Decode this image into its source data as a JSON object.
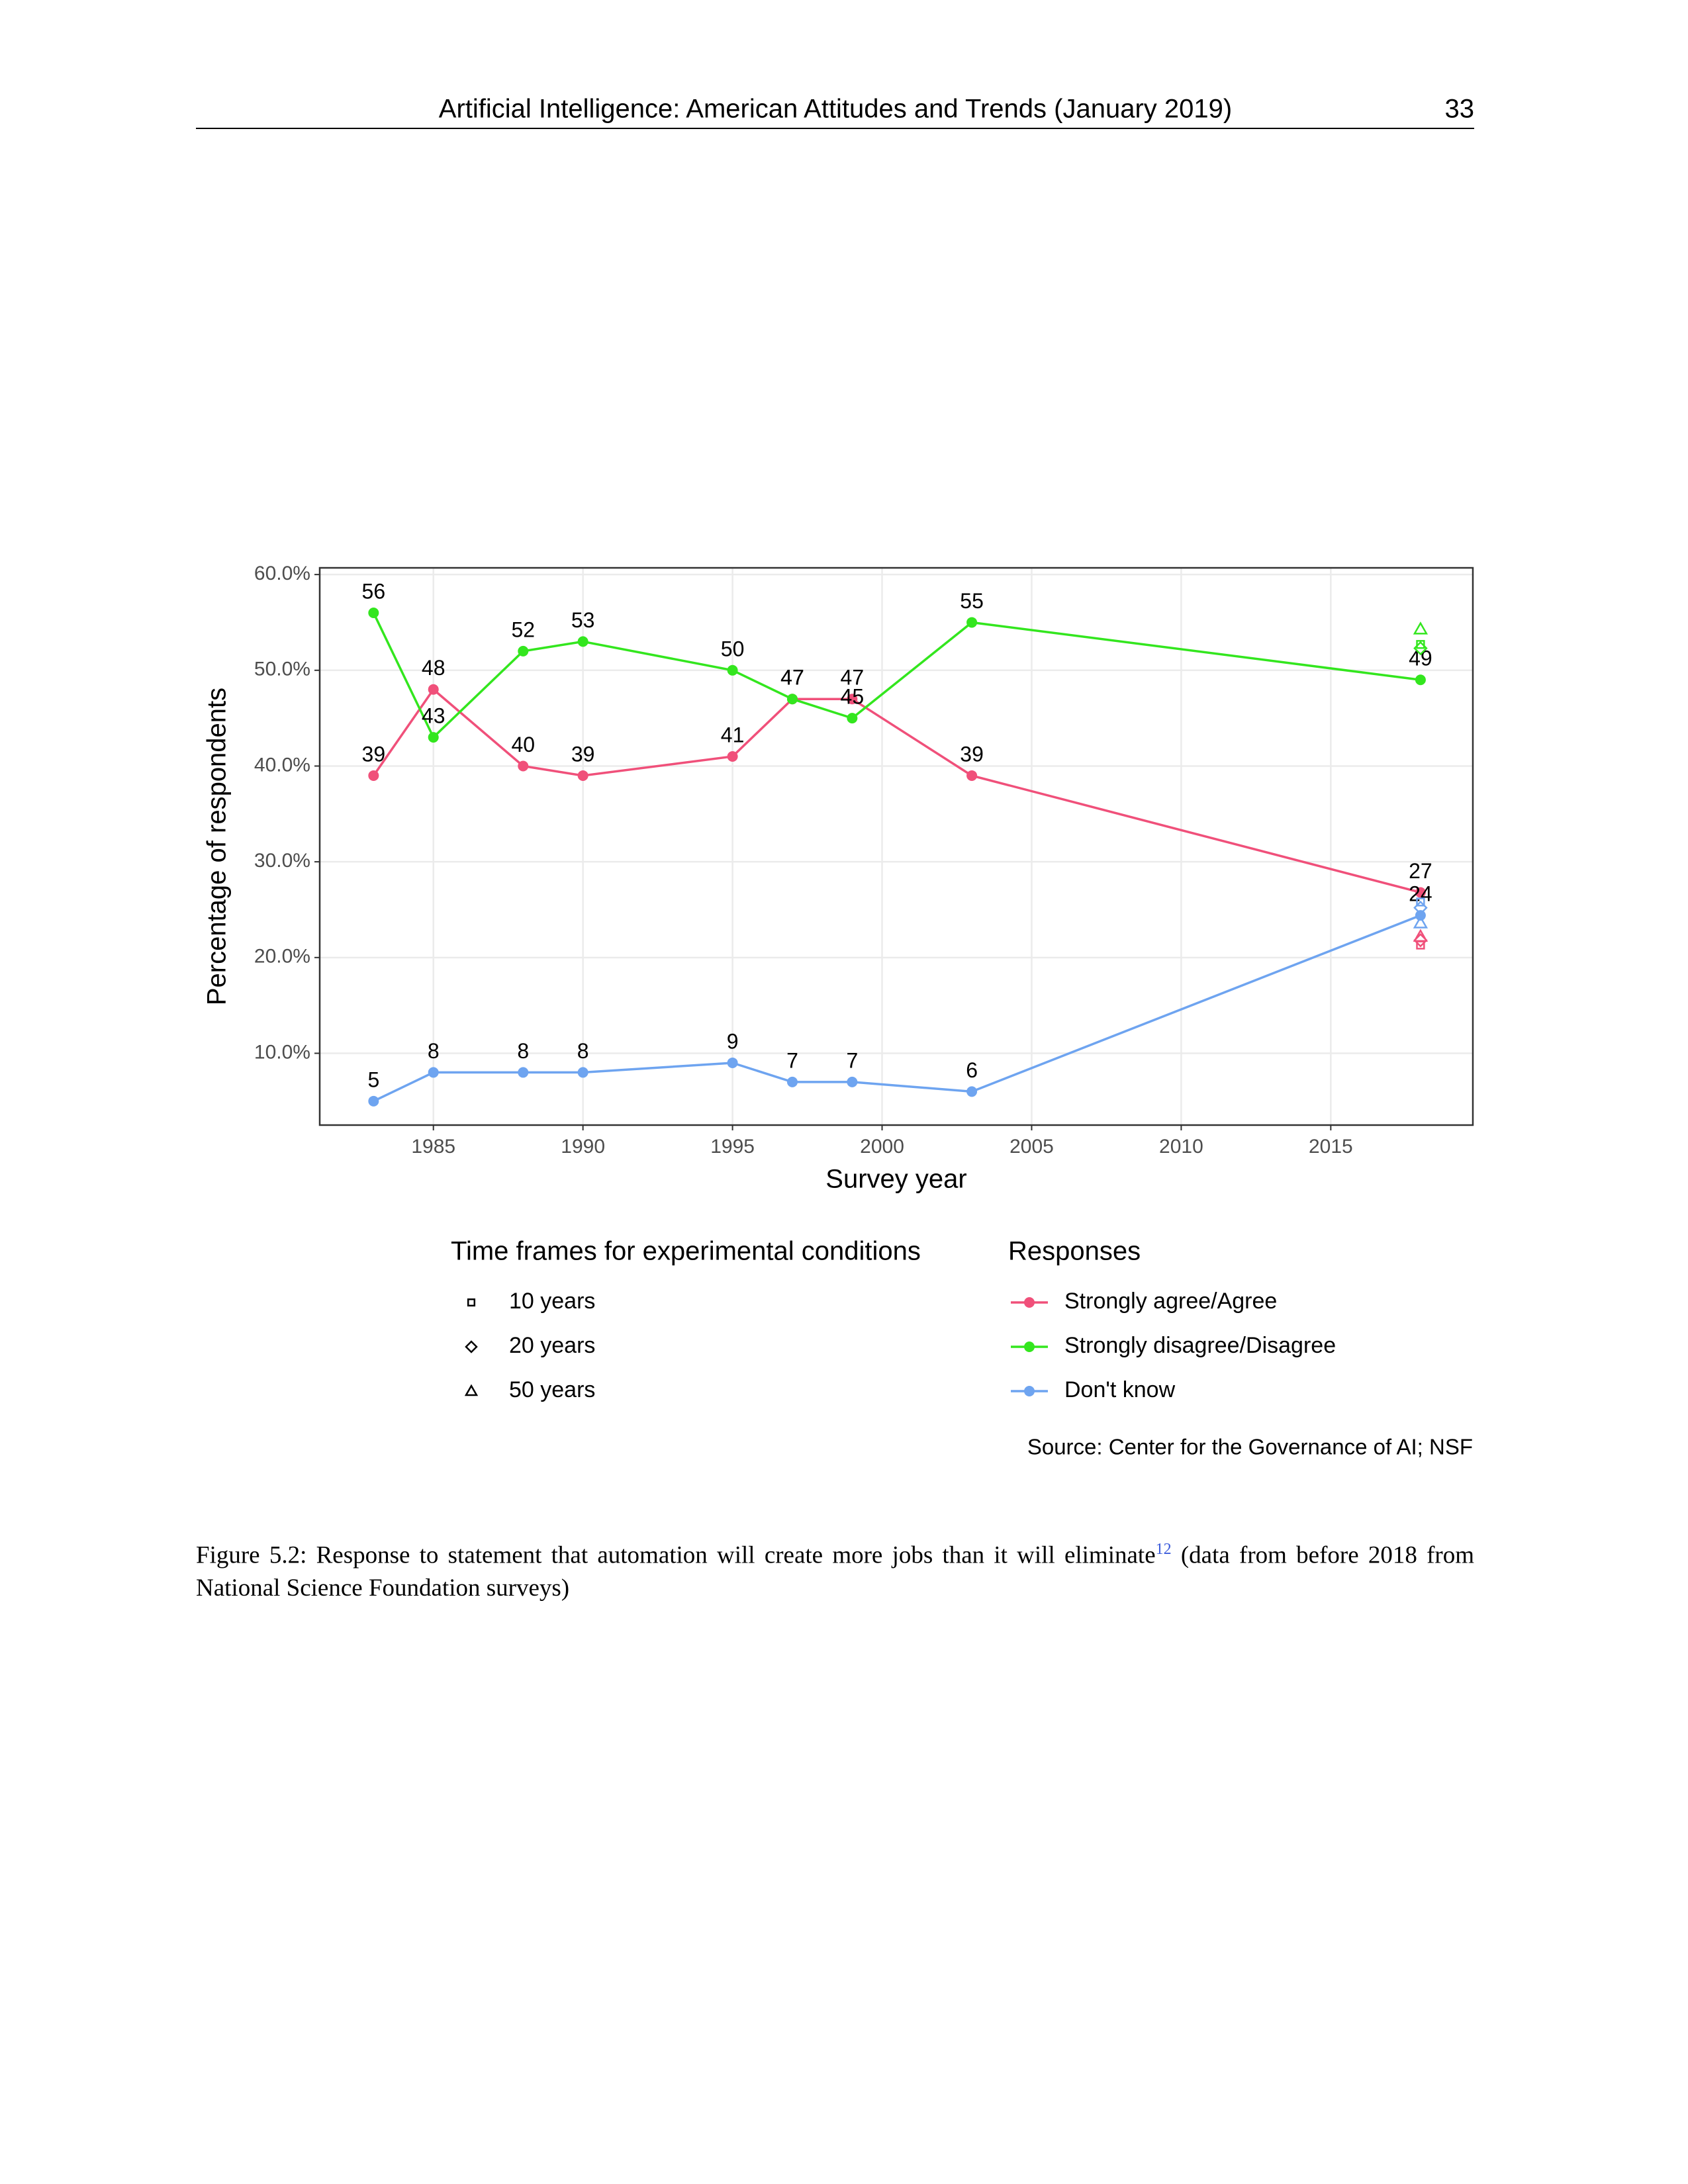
{
  "header": {
    "title": "Artificial Intelligence: American Attitudes and Trends (January 2019)",
    "page_number": "33"
  },
  "chart_data": {
    "type": "line",
    "x_label": "Survey year",
    "y_label": "Percentage of respondents",
    "x": [
      1983,
      1985,
      1988,
      1990,
      1995,
      1997,
      1999,
      2003,
      2018
    ],
    "xlim": [
      1981.2,
      2019.75
    ],
    "xticks": [
      1985,
      1990,
      1995,
      2000,
      2005,
      2010,
      2015
    ],
    "ylim": [
      2.5,
      60.7
    ],
    "yticks": [
      {
        "value": 10,
        "label": "10.0%"
      },
      {
        "value": 20,
        "label": "20.0%"
      },
      {
        "value": 30,
        "label": "30.0%"
      },
      {
        "value": 40,
        "label": "40.0%"
      },
      {
        "value": 50,
        "label": "50.0%"
      },
      {
        "value": 60,
        "label": "60.0%"
      }
    ],
    "grid": true,
    "legend_title": "Responses",
    "series": [
      {
        "name": "Strongly agree/Agree",
        "color": "#f0507a",
        "values": [
          39,
          48,
          40,
          39,
          41,
          47,
          47,
          39,
          26.8
        ],
        "value_labels": [
          "39",
          "48",
          "40",
          "39",
          "41",
          "47",
          "47",
          "39",
          "27"
        ]
      },
      {
        "name": "Strongly disagree/Disagree",
        "color": "#33e61e",
        "values": [
          56,
          43,
          52,
          53,
          50,
          47,
          45,
          55,
          49
        ],
        "value_labels": [
          "56",
          "43",
          "52",
          "53",
          "50",
          "47",
          "45",
          "55",
          "49"
        ]
      },
      {
        "name": "Don't know",
        "color": "#6ea4f0",
        "values": [
          5,
          8,
          8,
          8,
          9,
          7,
          7,
          6,
          24.4
        ],
        "value_labels": [
          "5",
          "8",
          "8",
          "8",
          "9",
          "7",
          "7",
          "6",
          "24"
        ]
      }
    ],
    "experimental_title": "Time frames for experimental conditions",
    "experimental_x": 2018,
    "experimental": [
      {
        "name": "10 years",
        "marker": "square",
        "values": [
          21.3,
          52.7,
          25.8
        ]
      },
      {
        "name": "20 years",
        "marker": "diamond",
        "values": [
          21.8,
          52.3,
          25.2
        ]
      },
      {
        "name": "50 years",
        "marker": "triangle",
        "values": [
          22.2,
          54.3,
          23.6
        ]
      }
    ],
    "source": "Source: Center for the Governance of AI; NSF"
  },
  "caption": {
    "label": "Figure 5.2:",
    "text": "Response to statement that automation will create more jobs than it will eliminate",
    "footnote": "12",
    "text_after": "(data from before 2018 from National Science Foundation surveys)"
  }
}
